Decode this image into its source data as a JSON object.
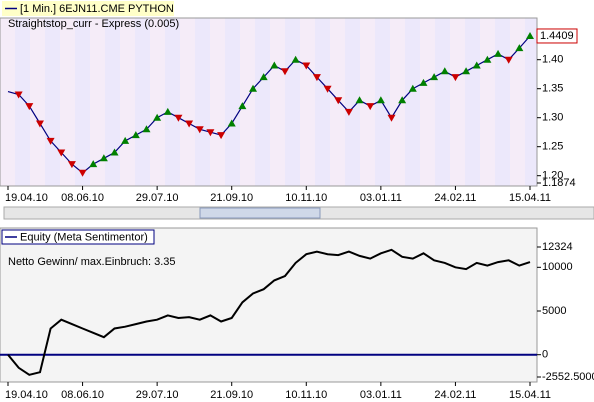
{
  "chart_data": [
    {
      "type": "line",
      "title": "[1 Min.] 6EJN11.CME PYTHON",
      "subtitle": "Straightstop_curr - Express (0.005)",
      "categories": [
        "19.04.10",
        null,
        null,
        null,
        null,
        null,
        null,
        "08.06.10",
        null,
        null,
        null,
        null,
        null,
        null,
        "29.07.10",
        null,
        null,
        null,
        null,
        null,
        null,
        "21.09.10",
        null,
        null,
        null,
        null,
        null,
        null,
        "10.11.10",
        null,
        null,
        null,
        null,
        null,
        null,
        "03.01.11",
        null,
        null,
        null,
        null,
        null,
        null,
        "24.02.11",
        null,
        null,
        null,
        null,
        null,
        null,
        "15.04.11"
      ],
      "series": [
        {
          "name": "[1 Min.] 6EJN11.CME PYTHON",
          "color": "#000080",
          "values": [
            1.345,
            1.34,
            1.32,
            1.29,
            1.26,
            1.24,
            1.22,
            1.205,
            1.22,
            1.23,
            1.24,
            1.26,
            1.27,
            1.28,
            1.3,
            1.31,
            1.3,
            1.29,
            1.28,
            1.275,
            1.27,
            1.29,
            1.32,
            1.35,
            1.37,
            1.39,
            1.38,
            1.4,
            1.39,
            1.37,
            1.35,
            1.33,
            1.31,
            1.33,
            1.32,
            1.33,
            1.3,
            1.33,
            1.35,
            1.36,
            1.37,
            1.38,
            1.37,
            1.38,
            1.39,
            1.4,
            1.41,
            1.4,
            1.42,
            1.4409
          ]
        }
      ],
      "ylim": [
        1.1874,
        1.465
      ],
      "yticks": [
        {
          "value": 1.4,
          "label": "1.40"
        },
        {
          "value": 1.35,
          "label": "1.35"
        },
        {
          "value": 1.3,
          "label": "1.30"
        },
        {
          "value": 1.25,
          "label": "1.25"
        },
        {
          "value": 1.2,
          "label": "1.20"
        },
        1.1874
      ],
      "up_color": "#008000",
      "down_color": "#cc0000"
    },
    {
      "type": "line",
      "annotation": "Netto Gewinn/ max.Einbruch: 3.35",
      "categories": [
        "19.04.10",
        null,
        null,
        null,
        null,
        null,
        null,
        "08.06.10",
        null,
        null,
        null,
        null,
        null,
        null,
        "29.07.10",
        null,
        null,
        null,
        null,
        null,
        null,
        "21.09.10",
        null,
        null,
        null,
        null,
        null,
        null,
        "10.11.10",
        null,
        null,
        null,
        null,
        null,
        null,
        "03.01.11",
        null,
        null,
        null,
        null,
        null,
        null,
        "24.02.11",
        null,
        null,
        null,
        null,
        null,
        null,
        "15.04.11"
      ],
      "series": [
        {
          "name": "Equity (Meta Sentimentor)",
          "color": "#000000",
          "values": [
            0,
            -1500,
            -2300,
            -2000,
            3000,
            4000,
            3500,
            3000,
            2500,
            2000,
            3000,
            3200,
            3500,
            3800,
            4000,
            4500,
            4200,
            4300,
            4000,
            4500,
            3800,
            4200,
            6000,
            7000,
            7500,
            8500,
            9000,
            10500,
            11500,
            11800,
            11500,
            11400,
            11800,
            11300,
            11000,
            11600,
            12000,
            11200,
            11000,
            11600,
            10800,
            10500,
            10000,
            9800,
            10500,
            10200,
            10600,
            10800,
            10200,
            10600
          ]
        }
      ],
      "ylim": [
        -2552.5,
        12324
      ],
      "yticks": [
        12324,
        10000,
        5000,
        0,
        {
          "value": -2552.5,
          "label": "-2552.5000"
        }
      ],
      "baseline_color": "#000080"
    }
  ]
}
